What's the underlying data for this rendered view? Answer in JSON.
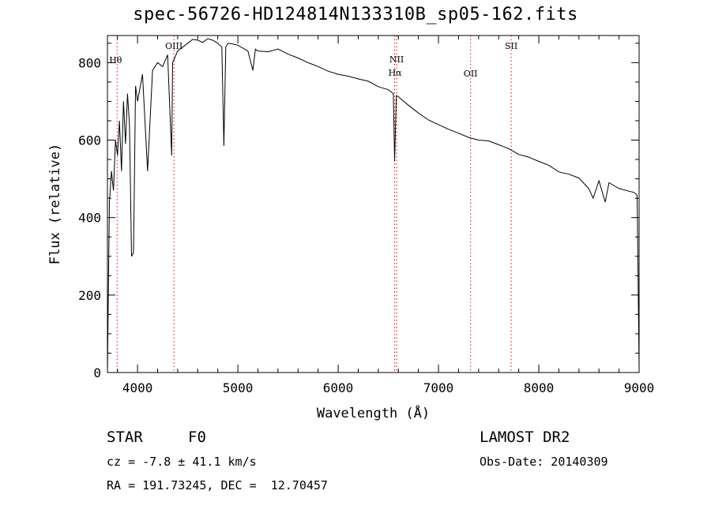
{
  "chart_data": {
    "type": "line",
    "title": "spec-56726-HD124814N133310B_sp05-162.fits",
    "xlabel": "Wavelength (Å)",
    "ylabel": "Flux (relative)",
    "xlim": [
      3700,
      9000
    ],
    "ylim": [
      0,
      870
    ],
    "x_ticks": [
      4000,
      5000,
      6000,
      7000,
      8000,
      9000
    ],
    "y_ticks": [
      0,
      200,
      400,
      600,
      800
    ],
    "series": [
      {
        "color": "#000000",
        "x": [
          3700,
          3720,
          3740,
          3760,
          3780,
          3800,
          3820,
          3840,
          3860,
          3880,
          3900,
          3920,
          3940,
          3960,
          3980,
          4000,
          4050,
          4100,
          4150,
          4200,
          4250,
          4300,
          4340,
          4350,
          4400,
          4450,
          4500,
          4550,
          4600,
          4650,
          4700,
          4750,
          4800,
          4840,
          4861,
          4880,
          4900,
          4950,
          5000,
          5100,
          5150,
          5175,
          5200,
          5300,
          5400,
          5500,
          5600,
          5700,
          5800,
          5900,
          6000,
          6100,
          6200,
          6300,
          6400,
          6500,
          6550,
          6563,
          6580,
          6600,
          6700,
          6800,
          6900,
          7000,
          7100,
          7200,
          7300,
          7400,
          7500,
          7600,
          7700,
          7800,
          7900,
          8000,
          8100,
          8200,
          8300,
          8400,
          8498,
          8542,
          8600,
          8662,
          8700,
          8800,
          8900,
          8950,
          8980,
          9000
        ],
        "y": [
          0,
          440,
          520,
          470,
          600,
          560,
          650,
          520,
          700,
          590,
          720,
          640,
          300,
          310,
          740,
          700,
          770,
          520,
          780,
          800,
          790,
          820,
          560,
          800,
          830,
          840,
          850,
          860,
          858,
          852,
          862,
          858,
          850,
          840,
          585,
          840,
          850,
          848,
          845,
          830,
          780,
          835,
          830,
          828,
          835,
          822,
          812,
          800,
          790,
          778,
          770,
          765,
          758,
          752,
          738,
          730,
          720,
          545,
          715,
          712,
          690,
          670,
          652,
          640,
          628,
          618,
          607,
          600,
          598,
          588,
          578,
          563,
          556,
          545,
          535,
          518,
          512,
          502,
          475,
          450,
          495,
          440,
          490,
          475,
          468,
          465,
          458,
          10
        ]
      }
    ],
    "lines": [
      {
        "label": "Hθ",
        "x": 3797
      },
      {
        "label": "OIII",
        "x": 4363
      },
      {
        "label": "NII",
        "x": 6583
      },
      {
        "label": "Hα",
        "x": 6563
      },
      {
        "label": "OII",
        "x": 7320
      },
      {
        "label": "SII",
        "x": 7725
      }
    ],
    "line_color": "#ff0000"
  },
  "info": {
    "type_label": "STAR",
    "subclass": "F0",
    "survey": "LAMOST DR2",
    "cz_text": "cz = -7.8 ± 41.1 km/s",
    "obs_date": "Obs-Date: 20140309",
    "coords": "RA = 191.73245, DEC =  12.70457"
  }
}
